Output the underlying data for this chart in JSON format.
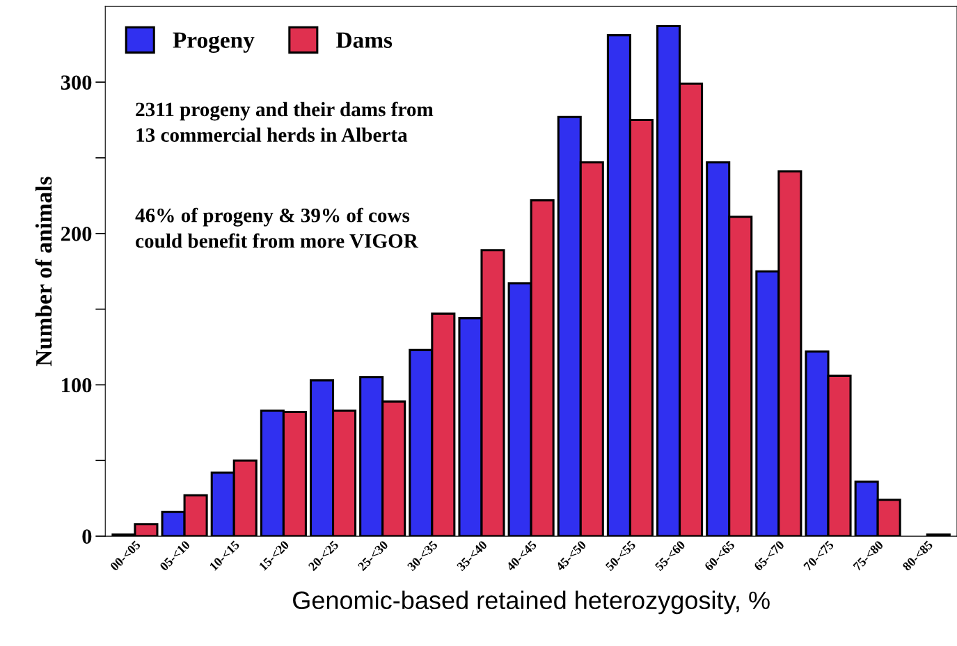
{
  "chart_data": {
    "type": "bar",
    "xlabel": "Genomic-based retained heterozygosity, %",
    "ylabel": "Number of animals",
    "categories": [
      "00-<05",
      "05-<10",
      "10-<15",
      "15-<20",
      "20-<25",
      "25-<30",
      "30-<35",
      "35-<40",
      "40-<45",
      "45-<50",
      "50-<55",
      "55-<60",
      "60-<65",
      "65-<70",
      "70-<75",
      "75-<80",
      "80-<85"
    ],
    "series": [
      {
        "name": "Progeny",
        "color": "#3030f0",
        "values": [
          1,
          16,
          42,
          83,
          103,
          105,
          123,
          144,
          167,
          277,
          331,
          337,
          247,
          175,
          122,
          36,
          null
        ]
      },
      {
        "name": "Dams",
        "color": "#e0304f",
        "values": [
          8,
          27,
          50,
          82,
          83,
          89,
          147,
          189,
          222,
          247,
          275,
          299,
          211,
          241,
          106,
          24,
          1
        ]
      }
    ],
    "ylim": [
      0,
      350
    ],
    "yticks": [
      0,
      {
        "value": 50,
        "label": null
      },
      100,
      {
        "value": 150,
        "label": null
      },
      200,
      {
        "value": 250,
        "label": null
      },
      300
    ],
    "annotations": [
      "2311 progeny and their dams from\n13 commercial herds in Alberta",
      "46% of progeny & 39% of cows\ncould benefit from more VIGOR"
    ],
    "legend": "top left",
    "grid": false
  }
}
